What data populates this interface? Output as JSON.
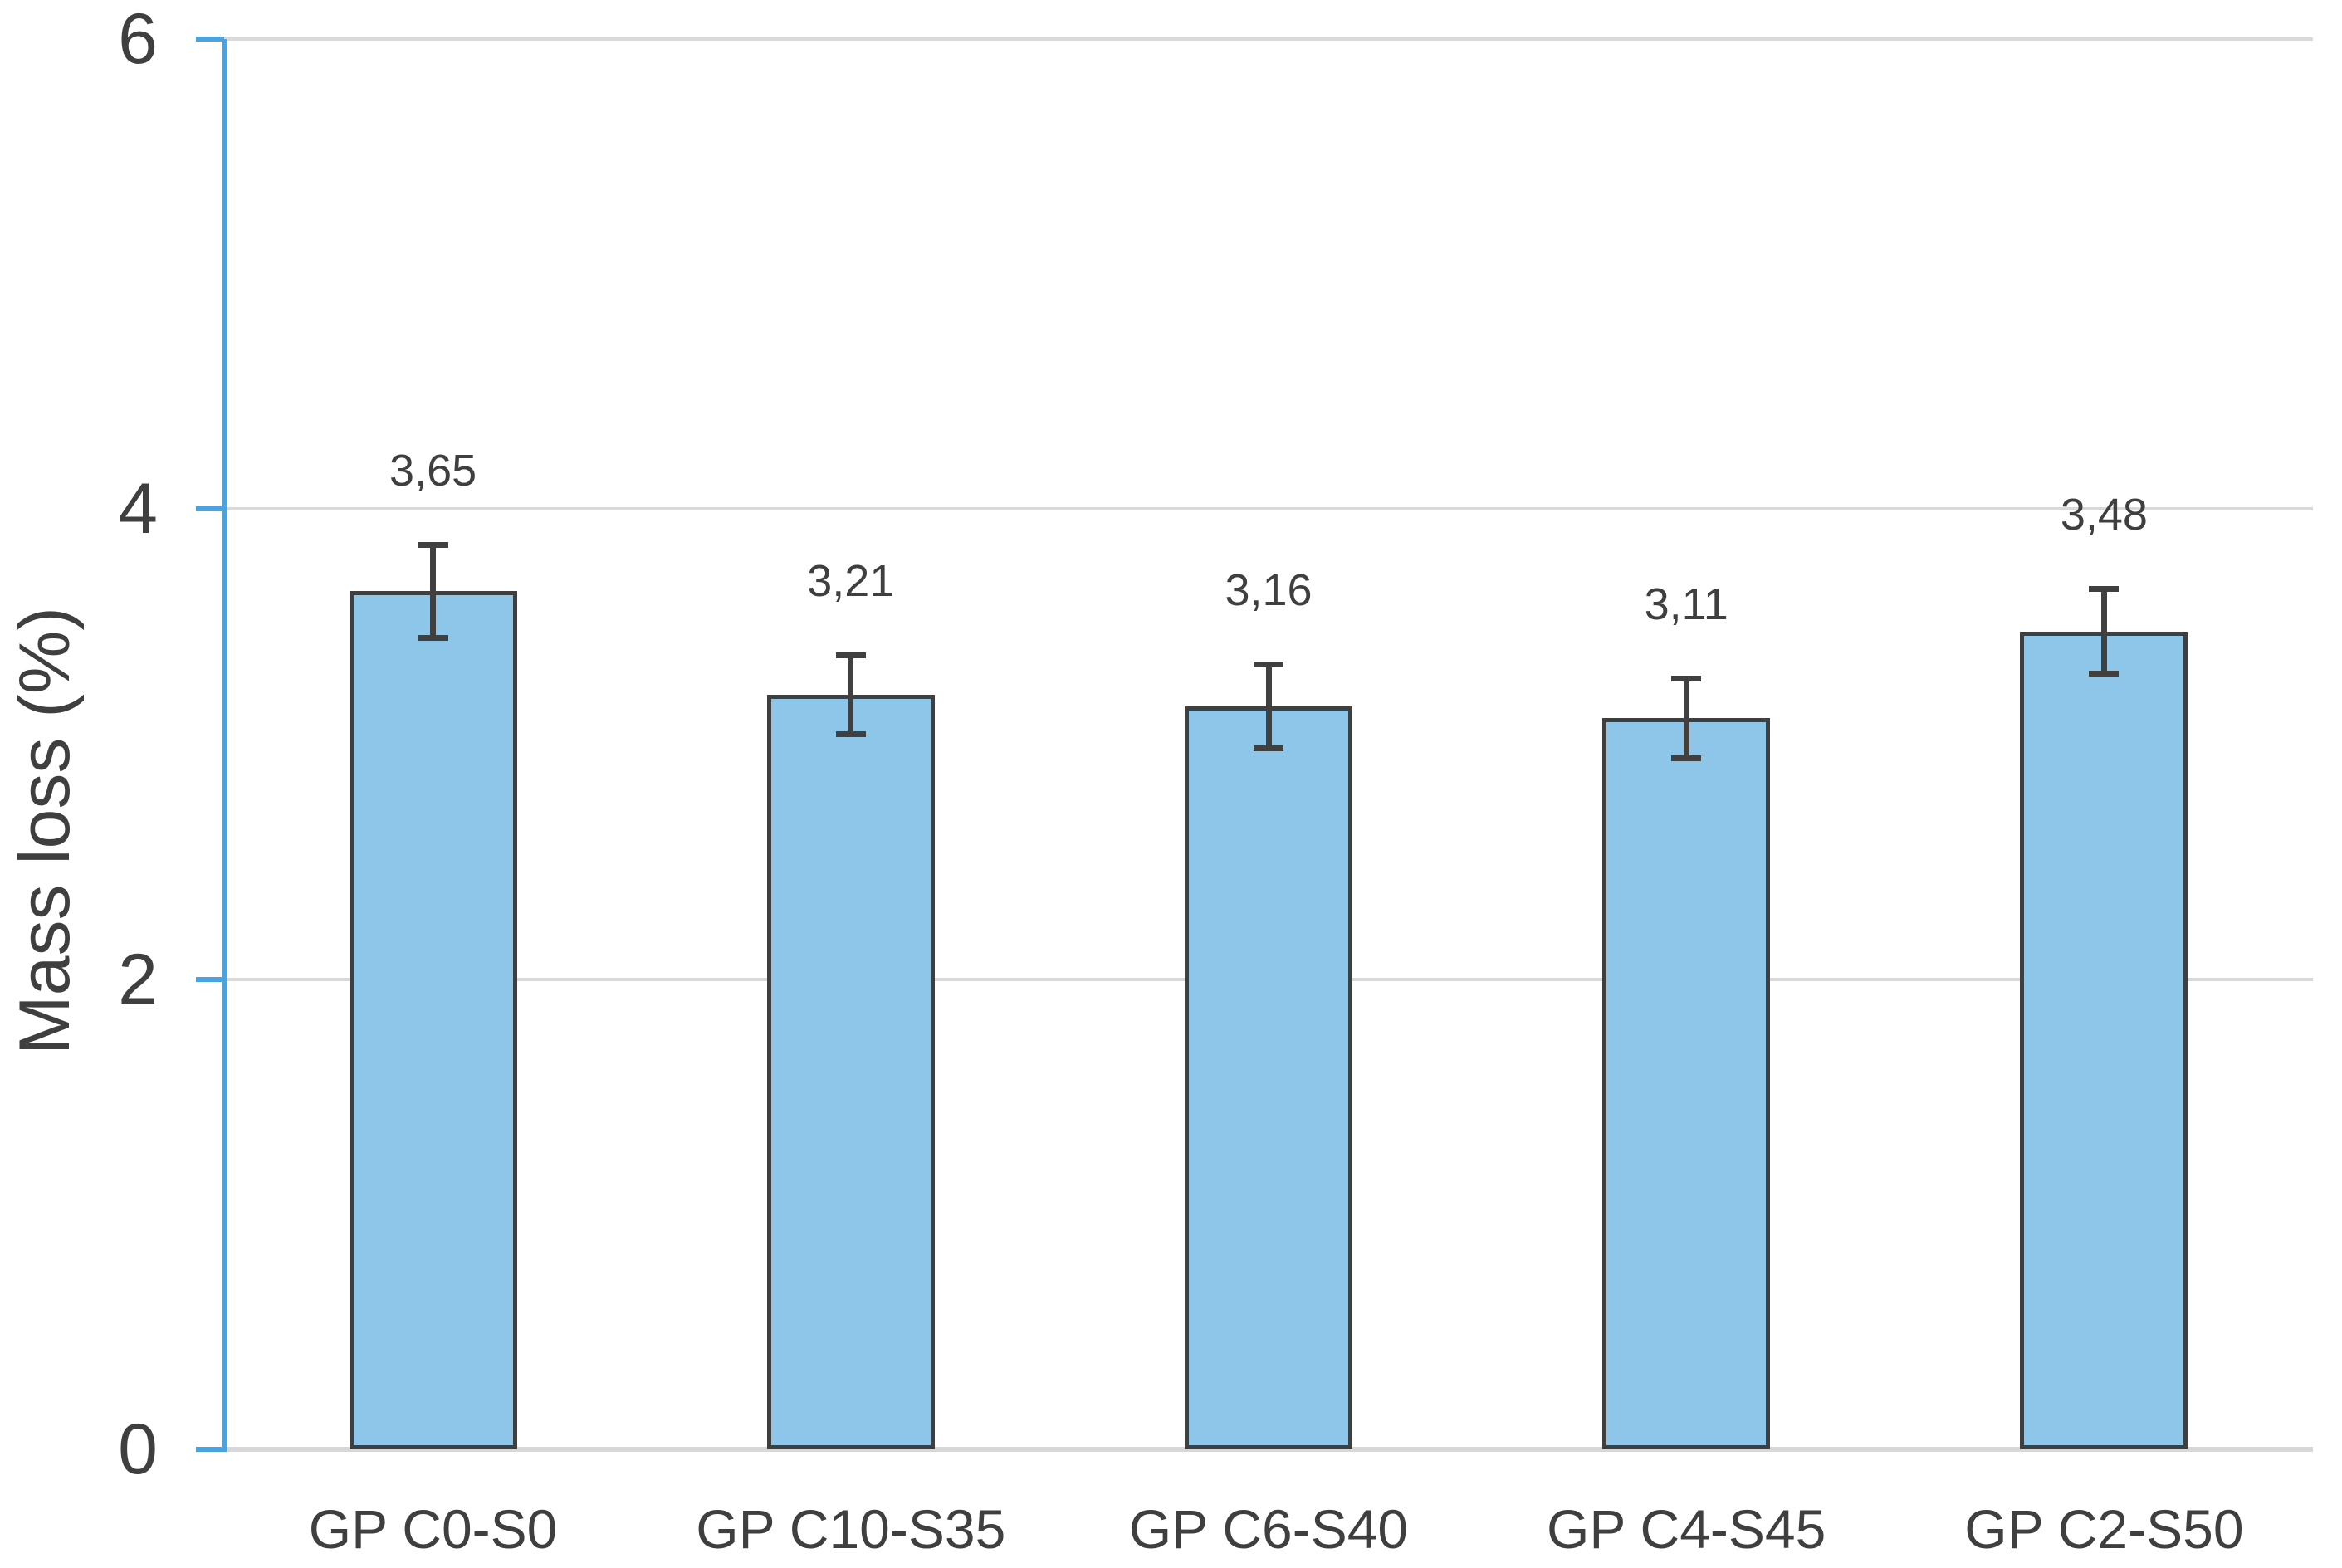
{
  "chart_data": {
    "type": "bar",
    "title": "",
    "categories": [
      "GP C0-S0",
      "GP C10-S35",
      "GP C6-S40",
      "GP C4-S45",
      "GP C2-S50"
    ],
    "values": [
      3.65,
      3.21,
      3.16,
      3.11,
      3.48
    ],
    "value_labels": [
      "3,65",
      "3,21",
      "3,16",
      "3,11",
      "3,48"
    ],
    "error_bars": [
      0.19,
      0.16,
      0.17,
      0.16,
      0.17
    ],
    "xlabel": "",
    "ylabel": "Mass loss (%)",
    "ylim": [
      0,
      6
    ],
    "yticks": [
      0,
      2,
      4,
      6
    ],
    "ytick_labels": [
      "0",
      "2",
      "4",
      "6"
    ],
    "grid": "horizontal",
    "legend": "none",
    "colors": {
      "bar_fill": "#8dc6e9",
      "bar_border": "#3f3f3f",
      "error_bar": "#404040",
      "axis_line": "#4aa3de",
      "tick_mark": "#4aa3de",
      "gridline": "#d9d9d9",
      "baseline": "#d7d7d7",
      "text": "#3f3f3f",
      "background": "#ffffff"
    }
  }
}
